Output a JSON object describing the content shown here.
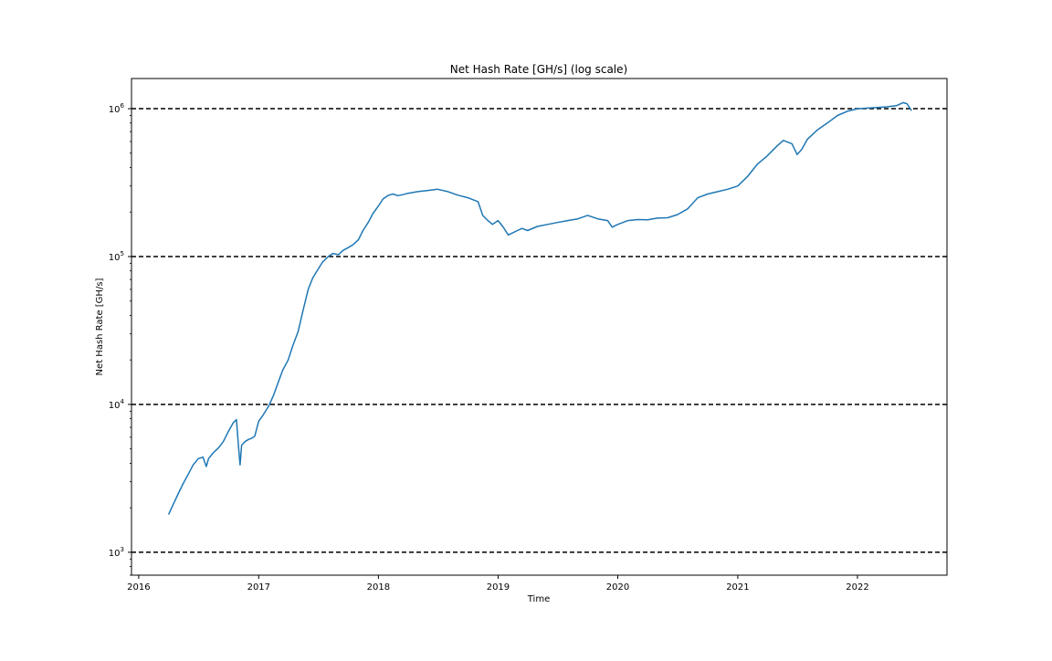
{
  "chart_data": {
    "type": "line",
    "title": "Net Hash Rate [GH/s] (log scale)",
    "xlabel": "Time",
    "ylabel": "Net Hash Rate [GH/s]",
    "y_scale": "log",
    "grid": false,
    "legend": "none",
    "xlim": [
      "2015-12-10",
      "2022-10-01"
    ],
    "ylim": [
      700,
      1600000
    ],
    "x_ticks": [
      {
        "value": "2016-01-01",
        "label": "2016"
      },
      {
        "value": "2017-01-01",
        "label": "2017"
      },
      {
        "value": "2018-01-01",
        "label": "2018"
      },
      {
        "value": "2019-01-01",
        "label": "2019"
      },
      {
        "value": "2020-01-01",
        "label": "2020"
      },
      {
        "value": "2021-01-01",
        "label": "2021"
      },
      {
        "value": "2022-01-01",
        "label": "2022"
      }
    ],
    "y_ticks": [
      {
        "value": 1000,
        "base": "10",
        "exp": "3"
      },
      {
        "value": 10000,
        "base": "10",
        "exp": "4"
      },
      {
        "value": 100000,
        "base": "10",
        "exp": "5"
      },
      {
        "value": 1000000,
        "base": "10",
        "exp": "6"
      }
    ],
    "reference_lines": [
      1000,
      10000,
      100000,
      1000000
    ],
    "series": [
      {
        "color": "#1f77b4",
        "x": [
          "2016-04-01",
          "2016-04-15",
          "2016-05-01",
          "2016-05-15",
          "2016-06-01",
          "2016-06-15",
          "2016-07-01",
          "2016-07-15",
          "2016-07-25",
          "2016-08-01",
          "2016-08-15",
          "2016-09-01",
          "2016-09-15",
          "2016-10-01",
          "2016-10-15",
          "2016-10-25",
          "2016-11-01",
          "2016-11-05",
          "2016-11-10",
          "2016-11-20",
          "2016-12-01",
          "2016-12-10",
          "2016-12-20",
          "2017-01-01",
          "2017-01-15",
          "2017-02-01",
          "2017-02-15",
          "2017-03-01",
          "2017-03-15",
          "2017-04-01",
          "2017-04-15",
          "2017-05-01",
          "2017-05-15",
          "2017-06-01",
          "2017-06-15",
          "2017-07-01",
          "2017-07-15",
          "2017-08-01",
          "2017-08-15",
          "2017-09-01",
          "2017-09-15",
          "2017-10-01",
          "2017-10-15",
          "2017-11-01",
          "2017-11-15",
          "2017-12-01",
          "2017-12-15",
          "2018-01-01",
          "2018-01-15",
          "2018-02-01",
          "2018-02-15",
          "2018-03-01",
          "2018-03-15",
          "2018-04-01",
          "2018-05-01",
          "2018-06-01",
          "2018-07-01",
          "2018-08-01",
          "2018-09-01",
          "2018-10-01",
          "2018-11-01",
          "2018-11-15",
          "2018-12-01",
          "2018-12-15",
          "2019-01-01",
          "2019-01-15",
          "2019-02-01",
          "2019-02-15",
          "2019-03-01",
          "2019-03-15",
          "2019-04-01",
          "2019-05-01",
          "2019-06-01",
          "2019-07-01",
          "2019-08-01",
          "2019-09-01",
          "2019-10-01",
          "2019-11-01",
          "2019-12-01",
          "2019-12-15",
          "2020-01-01",
          "2020-02-01",
          "2020-03-01",
          "2020-04-01",
          "2020-05-01",
          "2020-06-01",
          "2020-07-01",
          "2020-08-01",
          "2020-09-01",
          "2020-10-01",
          "2020-11-01",
          "2020-12-01",
          "2021-01-01",
          "2021-02-01",
          "2021-03-01",
          "2021-04-01",
          "2021-05-01",
          "2021-05-20",
          "2021-06-15",
          "2021-07-01",
          "2021-07-15",
          "2021-08-01",
          "2021-09-01",
          "2021-10-01",
          "2021-11-01",
          "2021-12-01",
          "2022-01-01",
          "2022-02-01",
          "2022-03-01",
          "2022-04-01",
          "2022-05-01",
          "2022-05-20",
          "2022-06-01",
          "2022-06-15"
        ],
        "values": [
          1800,
          2100,
          2500,
          2900,
          3400,
          3900,
          4300,
          4400,
          3800,
          4300,
          4700,
          5100,
          5600,
          6600,
          7500,
          7900,
          5000,
          3900,
          5300,
          5600,
          5800,
          5900,
          6100,
          7700,
          8500,
          9800,
          11500,
          14000,
          17000,
          20000,
          25000,
          31000,
          42000,
          60000,
          72000,
          82000,
          92000,
          100000,
          105000,
          103000,
          110000,
          115000,
          120000,
          130000,
          150000,
          170000,
          195000,
          220000,
          245000,
          260000,
          265000,
          258000,
          262000,
          268000,
          275000,
          280000,
          285000,
          275000,
          260000,
          250000,
          235000,
          190000,
          175000,
          165000,
          175000,
          160000,
          140000,
          145000,
          150000,
          155000,
          150000,
          160000,
          165000,
          170000,
          175000,
          180000,
          190000,
          180000,
          175000,
          158000,
          165000,
          175000,
          178000,
          177000,
          182000,
          183000,
          192000,
          210000,
          250000,
          265000,
          275000,
          285000,
          300000,
          350000,
          420000,
          480000,
          560000,
          610000,
          580000,
          490000,
          530000,
          620000,
          720000,
          800000,
          900000,
          960000,
          1000000,
          1010000,
          1020000,
          1030000,
          1050000,
          1100000,
          1080000,
          970000
        ]
      }
    ]
  }
}
